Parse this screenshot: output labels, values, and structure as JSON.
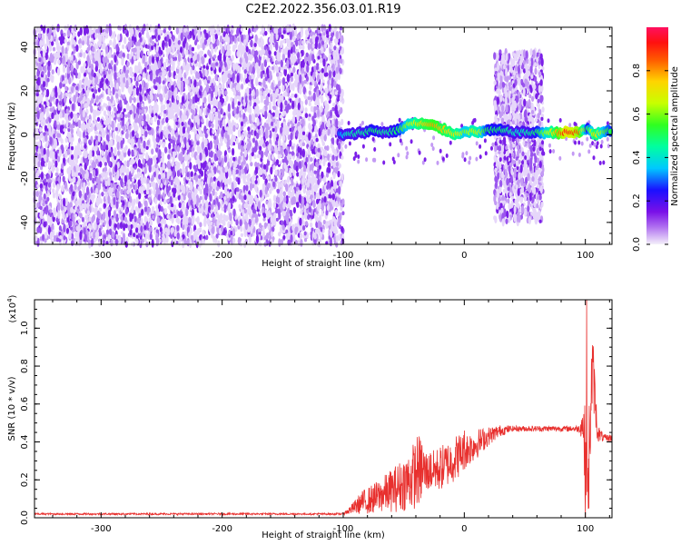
{
  "title": "C2E2.2022.356.03.01.R19",
  "colors": {
    "snr_line": "#e8302e",
    "scatter_base": "#7b1fe8",
    "axis": "#000000"
  },
  "colorbar": {
    "label": "Normalized spectral amplitude",
    "range": [
      0,
      1
    ],
    "ticks": [
      "0.0",
      "0.2",
      "0.4",
      "0.6",
      "0.8"
    ],
    "tick_values": [
      0.0,
      0.2,
      0.4,
      0.6,
      0.8
    ]
  },
  "chart_data": [
    {
      "type": "heatmap",
      "xlabel": "Height of straight line (km)",
      "ylabel": "Frequency (Hz)",
      "xlim": [
        -355,
        122
      ],
      "ylim": [
        -50,
        49
      ],
      "x_ticks": [
        -300,
        -200,
        -100,
        0,
        100
      ],
      "x_tick_labels": [
        "-300",
        "-200",
        "-100",
        "0",
        "100"
      ],
      "y_ticks": [
        -40,
        -20,
        0,
        20,
        40
      ],
      "y_tick_labels": [
        "-40",
        "-20",
        "0",
        "20",
        "40"
      ],
      "regions": [
        {
          "x": [
            -355,
            -100
          ],
          "f": [
            -50,
            49
          ],
          "amplitude": 0.15
        },
        {
          "x": [
            25,
            65
          ],
          "f": [
            -40,
            38
          ],
          "amplitude": 0.15
        }
      ],
      "ridge": [
        {
          "x": -103,
          "f": 0,
          "a": 0.3
        },
        {
          "x": -95,
          "f": 0,
          "a": 0.45
        },
        {
          "x": -85,
          "f": 1,
          "a": 0.45
        },
        {
          "x": -75,
          "f": 2,
          "a": 0.5
        },
        {
          "x": -65,
          "f": 1,
          "a": 0.45
        },
        {
          "x": -55,
          "f": 2,
          "a": 0.5
        },
        {
          "x": -45,
          "f": 5,
          "a": 0.65
        },
        {
          "x": -35,
          "f": 5,
          "a": 0.75
        },
        {
          "x": -25,
          "f": 4,
          "a": 0.8
        },
        {
          "x": -15,
          "f": 2,
          "a": 0.75
        },
        {
          "x": -5,
          "f": 0,
          "a": 0.7
        },
        {
          "x": 0,
          "f": 2,
          "a": 0.6
        },
        {
          "x": 10,
          "f": 1,
          "a": 0.7
        },
        {
          "x": 20,
          "f": 2,
          "a": 0.5
        },
        {
          "x": 30,
          "f": 2,
          "a": 0.5
        },
        {
          "x": 45,
          "f": 1,
          "a": 0.4
        },
        {
          "x": 60,
          "f": 1,
          "a": 0.5
        },
        {
          "x": 75,
          "f": 1,
          "a": 0.75
        },
        {
          "x": 85,
          "f": 1,
          "a": 0.95
        },
        {
          "x": 95,
          "f": 1,
          "a": 0.85
        },
        {
          "x": 102,
          "f": 3,
          "a": 0.5
        },
        {
          "x": 108,
          "f": 0,
          "a": 0.75
        },
        {
          "x": 115,
          "f": 1,
          "a": 0.6
        },
        {
          "x": 122,
          "f": 2,
          "a": 0.5
        }
      ]
    },
    {
      "type": "line",
      "xlabel": "Height of straight line (km)",
      "ylabel": "SNR (10 * v/v)",
      "y_scale_label": "(x10",
      "y_scale_exp": "4",
      "y_scale_close": ")",
      "xlim": [
        -355,
        122
      ],
      "ylim": [
        0,
        1.15
      ],
      "x_ticks": [
        -300,
        -200,
        -100,
        0,
        100
      ],
      "x_tick_labels": [
        "-300",
        "-200",
        "-100",
        "0",
        "100"
      ],
      "y_ticks": [
        0.0,
        0.2,
        0.4,
        0.6,
        0.8,
        1.0
      ],
      "y_tick_labels": [
        "0.0",
        "0.2",
        "0.4",
        "0.6",
        "0.8",
        "1.0"
      ],
      "series": [
        {
          "x": [
            -355,
            -300,
            -200,
            -120,
            -100,
            -92,
            -85,
            -75,
            -65,
            -55,
            -45,
            -38,
            -30,
            -20,
            -10,
            -5,
            0,
            10,
            20,
            30,
            40,
            50,
            60,
            70,
            80,
            90,
            95,
            98,
            100,
            102,
            104,
            106,
            110,
            115,
            122
          ],
          "y": [
            0.02,
            0.02,
            0.02,
            0.02,
            0.02,
            0.05,
            0.08,
            0.1,
            0.13,
            0.16,
            0.2,
            0.25,
            0.24,
            0.26,
            0.3,
            0.33,
            0.35,
            0.39,
            0.43,
            0.46,
            0.47,
            0.47,
            0.47,
            0.47,
            0.47,
            0.47,
            0.47,
            0.5,
            0.3,
            0.15,
            0.55,
            0.8,
            0.45,
            0.42,
            0.42
          ],
          "noise": [
            0.005,
            0.005,
            0.005,
            0.005,
            0.005,
            0.03,
            0.06,
            0.08,
            0.1,
            0.13,
            0.16,
            0.2,
            0.1,
            0.12,
            0.12,
            0.12,
            0.1,
            0.08,
            0.05,
            0.03,
            0.015,
            0.015,
            0.015,
            0.015,
            0.015,
            0.015,
            0.02,
            0.1,
            0.3,
            0.2,
            0.3,
            0.2,
            0.05,
            0.02,
            0.02
          ],
          "spikes": [
            {
              "x": -35,
              "y": 0.38
            },
            {
              "x": -28,
              "y": 0.34
            },
            {
              "x": 0,
              "y": 0.46
            },
            {
              "x": 101,
              "y": 1.15
            },
            {
              "x": 103,
              "y": 0.05
            },
            {
              "x": 106,
              "y": 0.86
            }
          ]
        }
      ]
    }
  ]
}
